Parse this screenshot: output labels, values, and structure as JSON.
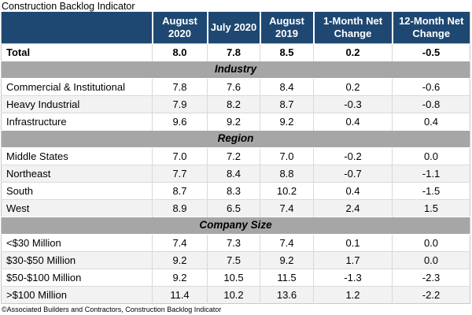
{
  "title": "Construction Backlog Indicator",
  "colors": {
    "header_bg": "#1e4872",
    "header_text": "#ffffff",
    "section_band_bg": "#a6a6a6",
    "row_alt_bg": "#f2f2f2",
    "grid_line": "#d9d9d9"
  },
  "chart_data": {
    "type": "table",
    "title": "Construction Backlog Indicator",
    "columns": [
      "August 2020",
      "July 2020",
      "August 2019",
      "1-Month Net Change",
      "12-Month Net Change"
    ],
    "total_row": {
      "label": "Total",
      "values": [
        "8.0",
        "7.8",
        "8.5",
        "0.2",
        "-0.5"
      ]
    },
    "sections": [
      {
        "name": "Industry",
        "rows": [
          {
            "label": "Commercial & Institutional",
            "values": [
              "7.8",
              "7.6",
              "8.4",
              "0.2",
              "-0.6"
            ]
          },
          {
            "label": "Heavy Industrial",
            "values": [
              "7.9",
              "8.2",
              "8.7",
              "-0.3",
              "-0.8"
            ]
          },
          {
            "label": "Infrastructure",
            "values": [
              "9.6",
              "9.2",
              "9.2",
              "0.4",
              "0.4"
            ]
          }
        ]
      },
      {
        "name": "Region",
        "rows": [
          {
            "label": "Middle States",
            "values": [
              "7.0",
              "7.2",
              "7.0",
              "-0.2",
              "0.0"
            ]
          },
          {
            "label": "Northeast",
            "values": [
              "7.7",
              "8.4",
              "8.8",
              "-0.7",
              "-1.1"
            ]
          },
          {
            "label": "South",
            "values": [
              "8.7",
              "8.3",
              "10.2",
              "0.4",
              "-1.5"
            ]
          },
          {
            "label": "West",
            "values": [
              "8.9",
              "6.5",
              "7.4",
              "2.4",
              "1.5"
            ]
          }
        ]
      },
      {
        "name": "Company Size",
        "rows": [
          {
            "label": "<$30 Million",
            "values": [
              "7.4",
              "7.3",
              "7.4",
              "0.1",
              "0.0"
            ]
          },
          {
            "label": "$30-$50 Million",
            "values": [
              "9.2",
              "7.5",
              "9.2",
              "1.7",
              "0.0"
            ]
          },
          {
            "label": "$50-$100 Million",
            "values": [
              "9.2",
              "10.5",
              "11.5",
              "-1.3",
              "-2.3"
            ]
          },
          {
            "label": ">$100 Million",
            "values": [
              "11.4",
              "10.2",
              "13.6",
              "1.2",
              "-2.2"
            ]
          }
        ]
      }
    ],
    "source": "©Associated Builders and Contractors, Construction Backlog Indicator"
  }
}
